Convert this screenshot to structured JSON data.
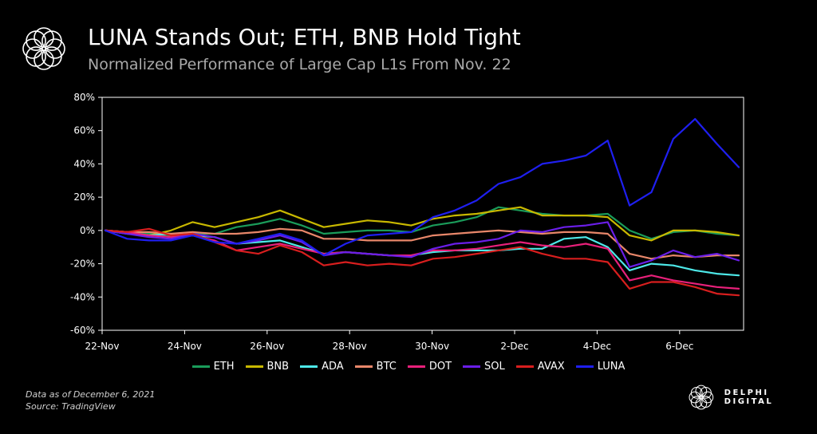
{
  "header": {
    "title": "LUNA Stands Out; ETH, BNB Hold Tight",
    "subtitle": "Normalized Performance of Large Cap L1s From Nov. 22"
  },
  "footnote": {
    "line1": "Data as of December 6, 2021",
    "line2": "Source: TradingView"
  },
  "brand": {
    "name": "DELPHI DIGITAL",
    "icon": "flower-logo-icon"
  },
  "chart_data": {
    "type": "line",
    "title": "LUNA Stands Out; ETH, BNB Hold Tight",
    "subtitle": "Normalized Performance of Large Cap L1s From Nov. 22",
    "xlabel": "",
    "ylabel": "",
    "x": [
      "22-Nov",
      "22-Nov 12h",
      "23-Nov",
      "23-Nov 12h",
      "24-Nov",
      "24-Nov 12h",
      "25-Nov",
      "25-Nov 12h",
      "26-Nov",
      "26-Nov 12h",
      "27-Nov",
      "27-Nov 12h",
      "28-Nov",
      "28-Nov 12h",
      "29-Nov",
      "29-Nov 12h",
      "30-Nov",
      "30-Nov 12h",
      "1-Dec",
      "1-Dec 12h",
      "2-Dec",
      "2-Dec 12h",
      "3-Dec",
      "3-Dec 12h",
      "4-Dec",
      "4-Dec 12h",
      "5-Dec",
      "5-Dec 12h",
      "6-Dec",
      "6-Dec 12h"
    ],
    "x_ticks": [
      "22-Nov",
      "24-Nov",
      "26-Nov",
      "28-Nov",
      "30-Nov",
      "2-Dec",
      "4-Dec",
      "6-Dec"
    ],
    "y_ticks": [
      "80%",
      "60%",
      "40%",
      "20%",
      "0%",
      "-20%",
      "-40%",
      "-60%"
    ],
    "ylim": [
      -60,
      80
    ],
    "y_unit": "%",
    "grid": false,
    "legend": "bottom",
    "series": [
      {
        "name": "ETH",
        "color": "#1a9c5a",
        "values": [
          0,
          -1,
          -2,
          -3,
          -2,
          -2,
          2,
          4,
          7,
          3,
          -2,
          -1,
          0,
          0,
          -1,
          3,
          5,
          8,
          14,
          12,
          10,
          9,
          9,
          10,
          0,
          -5,
          -1,
          0,
          -2,
          -3
        ]
      },
      {
        "name": "BNB",
        "color": "#c8b800",
        "values": [
          0,
          -1,
          -3,
          0,
          5,
          2,
          5,
          8,
          12,
          7,
          2,
          4,
          6,
          5,
          3,
          7,
          9,
          10,
          12,
          14,
          9,
          9,
          9,
          8,
          -3,
          -6,
          0,
          0,
          -1,
          -3
        ]
      },
      {
        "name": "ADA",
        "color": "#4de8e8",
        "values": [
          0,
          -2,
          -3,
          -2,
          -3,
          -4,
          -8,
          -7,
          -6,
          -10,
          -14,
          -13,
          -14,
          -15,
          -15,
          -13,
          -12,
          -12,
          -12,
          -11,
          -11,
          -5,
          -4,
          -10,
          -24,
          -20,
          -21,
          -24,
          -26,
          -27
        ]
      },
      {
        "name": "BTC",
        "color": "#e8876a",
        "values": [
          0,
          -1,
          -1,
          -2,
          -1,
          -2,
          -2,
          -1,
          1,
          0,
          -5,
          -5,
          -6,
          -6,
          -6,
          -3,
          -2,
          -1,
          0,
          -1,
          -2,
          -1,
          -1,
          -2,
          -14,
          -17,
          -15,
          -16,
          -15,
          -15
        ]
      },
      {
        "name": "DOT",
        "color": "#e8207a",
        "values": [
          0,
          -1,
          -3,
          -4,
          -3,
          -6,
          -12,
          -10,
          -8,
          -11,
          -14,
          -13,
          -14,
          -15,
          -15,
          -12,
          -12,
          -11,
          -9,
          -7,
          -9,
          -10,
          -8,
          -11,
          -30,
          -27,
          -30,
          -32,
          -34,
          -35
        ]
      },
      {
        "name": "SOL",
        "color": "#6a1ee8",
        "values": [
          0,
          -2,
          -4,
          -5,
          -2,
          -4,
          -8,
          -6,
          -3,
          -7,
          -15,
          -13,
          -14,
          -15,
          -16,
          -11,
          -8,
          -7,
          -5,
          0,
          -1,
          2,
          3,
          5,
          -22,
          -18,
          -12,
          -16,
          -14,
          -18
        ]
      },
      {
        "name": "AVAX",
        "color": "#d81e1e",
        "values": [
          0,
          -1,
          1,
          -3,
          -2,
          -7,
          -12,
          -14,
          -9,
          -13,
          -21,
          -19,
          -21,
          -20,
          -21,
          -17,
          -16,
          -14,
          -12,
          -10,
          -14,
          -17,
          -17,
          -19,
          -35,
          -31,
          -31,
          -34,
          -38,
          -39
        ]
      },
      {
        "name": "LUNA",
        "color": "#1f1ff0",
        "values": [
          0,
          -5,
          -6,
          -6,
          -3,
          -7,
          -8,
          -5,
          -2,
          -6,
          -15,
          -8,
          -3,
          -2,
          -1,
          8,
          12,
          18,
          28,
          32,
          40,
          42,
          45,
          54,
          15,
          23,
          55,
          67,
          52,
          38
        ]
      }
    ]
  }
}
